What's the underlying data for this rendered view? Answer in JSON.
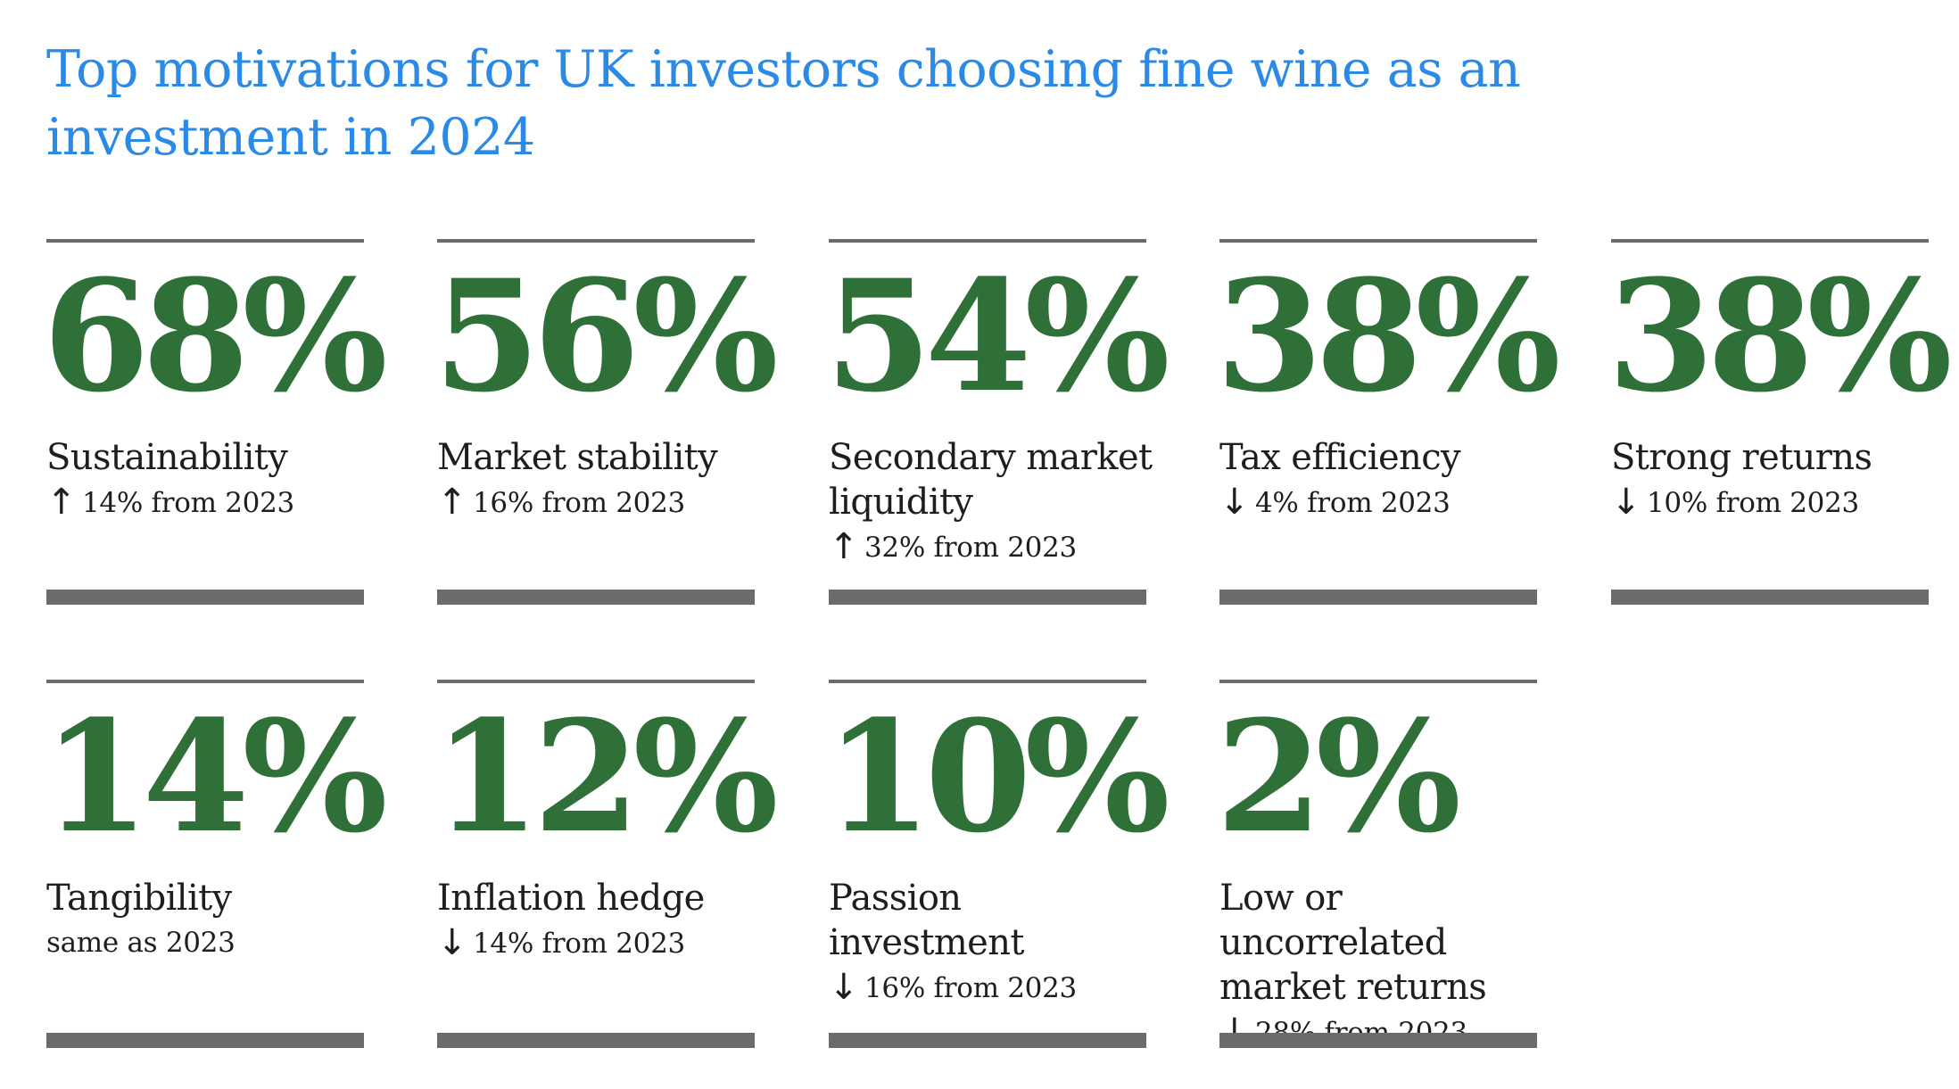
{
  "title": "Top motivations for UK investors choosing fine wine as an investment in 2024",
  "colors": {
    "title": "#2a8ae6",
    "percentage": "#2e7038",
    "rule": "#6b6b6b",
    "text": "#1e1e1e"
  },
  "chart_data": {
    "type": "table",
    "title": "Top motivations for UK investors choosing fine wine as an investment in 2024",
    "unit": "%",
    "items": [
      {
        "value": 68,
        "value_label": "68%",
        "label": "Sustainability",
        "direction": "up",
        "change_label": "14% from 2023",
        "change": 14
      },
      {
        "value": 56,
        "value_label": "56%",
        "label": "Market stability",
        "direction": "up",
        "change_label": "16% from 2023",
        "change": 16
      },
      {
        "value": 54,
        "value_label": "54%",
        "label": "Secondary market liquidity",
        "direction": "up",
        "change_label": "32% from 2023",
        "change": 32
      },
      {
        "value": 38,
        "value_label": "38%",
        "label": "Tax efficiency",
        "direction": "down",
        "change_label": "4% from 2023",
        "change": -4
      },
      {
        "value": 38,
        "value_label": "38%",
        "label": "Strong returns",
        "direction": "down",
        "change_label": "10% from 2023",
        "change": -10
      },
      {
        "value": 14,
        "value_label": "14%",
        "label": "Tangibility",
        "direction": "none",
        "change_label": "same as 2023",
        "change": 0
      },
      {
        "value": 12,
        "value_label": "12%",
        "label": "Inflation hedge",
        "direction": "down",
        "change_label": "14% from 2023",
        "change": -14
      },
      {
        "value": 10,
        "value_label": "10%",
        "label": "Passion investment",
        "direction": "down",
        "change_label": "16% from 2023",
        "change": -16
      },
      {
        "value": 2,
        "value_label": "2%",
        "label": "Low or uncorrelated market returns",
        "direction": "down",
        "change_label": "28% from 2023",
        "change": -28
      }
    ]
  }
}
